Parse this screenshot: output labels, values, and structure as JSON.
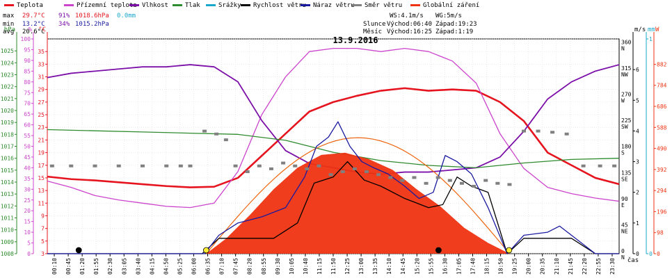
{
  "legend": [
    {
      "label": "Teplota",
      "color": "#e5141e"
    },
    {
      "label": "Přízemní teplota",
      "color": "#cc44cc"
    },
    {
      "label": "Vlhkost",
      "color": "#7b0fa8"
    },
    {
      "label": "Tlak",
      "color": "#2e8b2e"
    },
    {
      "label": "Srážky",
      "color": "#1aa7cc"
    },
    {
      "label": "Rychlost větru",
      "color": "#000000"
    },
    {
      "label": "Náraz větru",
      "color": "#1a1aa0"
    },
    {
      "label": "Směr větru",
      "color": "#808080"
    },
    {
      "label": "Globální záření",
      "color": "#ee3311"
    }
  ],
  "stats": {
    "max": {
      "label": "max",
      "temp": "29.7°C",
      "hum": "91%",
      "press": "1018.6hPa",
      "rain": "0.0mm"
    },
    "min": {
      "label": "min",
      "temp": "13.2°C",
      "hum": "34%",
      "press": "1015.2hPa"
    },
    "avg": {
      "label": "avg",
      "temp": "20.6°C"
    }
  },
  "wind_info": {
    "ws": "WS:4.1m/s",
    "wg": "WG:5m/s"
  },
  "sun": {
    "label": "Slunce",
    "rise": "Východ:06:40",
    "set": "Západ:19:23"
  },
  "moon": {
    "label": "Měsíc",
    "rise": "Východ:16:25",
    "set": "Západ:1:19"
  },
  "chart_data": {
    "type": "line",
    "title": "13.9.2016",
    "xlabel": "čas",
    "x_ticks": [
      "00:10",
      "00:45",
      "01:20",
      "01:55",
      "02:30",
      "03:05",
      "03:40",
      "04:15",
      "04:50",
      "05:25",
      "06:00",
      "06:35",
      "07:10",
      "07:45",
      "08:20",
      "08:55",
      "09:30",
      "10:05",
      "10:40",
      "11:15",
      "11:50",
      "12:25",
      "13:00",
      "13:35",
      "14:10",
      "14:45",
      "15:20",
      "15:55",
      "16:30",
      "17:05",
      "17:40",
      "18:15",
      "18:50",
      "19:25",
      "20:00",
      "20:35",
      "21:10",
      "21:45",
      "22:20",
      "22:55",
      "23:30"
    ],
    "axes": {
      "hpa": {
        "label": "hPa",
        "range": [
          1008,
          1026
        ],
        "ticks": [
          "1008",
          "1009",
          "1010",
          "1011",
          "1012",
          "1013",
          "1014",
          "1015",
          "1016",
          "1017",
          "1018",
          "1019",
          "1020",
          "1021",
          "1022",
          "1023",
          "1024",
          "1025"
        ],
        "color": "#2e8b2e"
      },
      "pct": {
        "label": "%",
        "range": [
          0,
          100
        ],
        "ticks": [
          "0",
          "5",
          "10",
          "15",
          "20",
          "25",
          "30",
          "35",
          "40",
          "45",
          "50",
          "55",
          "60",
          "65",
          "70",
          "75",
          "80",
          "85",
          "90",
          "95",
          "100"
        ],
        "color": "#cc44cc"
      },
      "temp": {
        "label": "°C",
        "range": [
          3,
          37
        ],
        "ticks": [
          "3",
          "5",
          "7",
          "9",
          "11",
          "13",
          "15",
          "17",
          "19",
          "21",
          "23",
          "25",
          "27",
          "29",
          "31",
          "33",
          "35"
        ],
        "color": "#e5141e"
      },
      "ms": {
        "label": "m/s",
        "range": [
          0,
          7
        ],
        "ticks": [
          "0",
          "1",
          "2",
          "3",
          "4",
          "5",
          "6"
        ],
        "color": "#000000"
      },
      "mm": {
        "label": "mm",
        "range": [
          0,
          1
        ],
        "ticks": [
          "0",
          "1"
        ],
        "color": "#1aa7cc"
      },
      "w": {
        "label": "W",
        "range": [
          0,
          1000
        ],
        "ticks": [
          "0",
          "98",
          "196",
          "294",
          "392",
          "490",
          "588",
          "686",
          "784",
          "882"
        ],
        "color": "#ee3311"
      },
      "dir": {
        "ticks": [
          {
            "deg": "0",
            "dir": "N"
          },
          {
            "deg": "45",
            "dir": "NE"
          },
          {
            "deg": "90",
            "dir": "E"
          },
          {
            "deg": "135",
            "dir": "SE"
          },
          {
            "deg": "180",
            "dir": "S"
          },
          {
            "deg": "225",
            "dir": "SW"
          },
          {
            "deg": "270",
            "dir": "W"
          },
          {
            "deg": "315",
            "dir": "NW"
          },
          {
            "deg": "360",
            "dir": "N"
          }
        ],
        "range": [
          0,
          370
        ]
      }
    },
    "series": [
      {
        "name": "Teplota",
        "axis": "temp",
        "color": "#e5141e",
        "x": [
          0,
          1,
          2,
          3,
          4,
          5,
          6,
          7,
          8,
          9,
          10,
          11,
          12,
          13,
          14,
          15,
          16,
          17,
          18,
          19,
          20,
          21,
          22,
          23,
          24
        ],
        "y": [
          15.2,
          14.8,
          14.6,
          14.3,
          14.0,
          13.7,
          13.5,
          13.6,
          15.0,
          18.5,
          22.0,
          25.5,
          27.0,
          28.0,
          28.8,
          29.2,
          28.8,
          29.0,
          28.8,
          27.0,
          24.0,
          19.0,
          17.0,
          15.0,
          14.0
        ]
      },
      {
        "name": "Přízemní teplota",
        "axis": "temp",
        "color": "#cc44cc",
        "x": [
          0,
          1,
          2,
          3,
          4,
          5,
          6,
          7,
          8,
          9,
          10,
          11,
          12,
          13,
          14,
          15,
          16,
          17,
          18,
          19,
          20,
          21,
          22,
          23,
          24
        ],
        "y": [
          14.5,
          13.5,
          12.2,
          11.5,
          11.0,
          10.5,
          10.3,
          11.0,
          16.0,
          25.0,
          31.0,
          35.0,
          35.5,
          35.5,
          35.0,
          35.5,
          35.0,
          33.5,
          30.0,
          22.0,
          16.5,
          13.5,
          12.5,
          11.8,
          11.3
        ]
      },
      {
        "name": "Vlhkost",
        "axis": "pct",
        "color": "#7b0fa8",
        "x": [
          0,
          1,
          2,
          3,
          4,
          5,
          6,
          7,
          8,
          9,
          10,
          11,
          12,
          13,
          14,
          15,
          16,
          17,
          18,
          19,
          20,
          21,
          22,
          23,
          24
        ],
        "y": [
          82,
          84,
          85,
          86,
          87,
          87,
          88,
          87,
          80,
          62,
          48,
          42,
          40,
          38,
          37,
          38,
          38,
          39,
          40,
          45,
          57,
          72,
          80,
          85,
          88
        ]
      },
      {
        "name": "Tlak",
        "axis": "hpa",
        "color": "#2e8b2e",
        "x": [
          0,
          2,
          4,
          6,
          8,
          10,
          12,
          14,
          16,
          18,
          20,
          22,
          24
        ],
        "y": [
          1018.4,
          1018.3,
          1018.2,
          1018.1,
          1018.0,
          1017.5,
          1016.5,
          1015.8,
          1015.4,
          1015.2,
          1015.6,
          1015.9,
          1016.0
        ]
      },
      {
        "name": "Globální záření",
        "axis": "w",
        "color": "#ee3311",
        "type": "area",
        "x": [
          6.67,
          7.5,
          8.5,
          9.5,
          10.5,
          11.5,
          12.5,
          13.5,
          14.5,
          15.5,
          16.5,
          17.5,
          18.5,
          19.4
        ],
        "y": [
          0,
          70,
          180,
          300,
          400,
          460,
          470,
          440,
          390,
          300,
          220,
          120,
          50,
          0
        ]
      },
      {
        "name": "Rychlost větru",
        "axis": "ms",
        "color": "#000000",
        "x": [
          0,
          6.5,
          7.2,
          7.6,
          8.5,
          9.5,
          10.5,
          11.2,
          12.0,
          12.6,
          13.3,
          14.0,
          15.0,
          16.0,
          16.6,
          17.2,
          17.8,
          18.5,
          19.3,
          20.0,
          21.0,
          22.0,
          23.0,
          24
        ],
        "y": [
          0,
          0,
          0.5,
          0.5,
          0.5,
          0.5,
          1.0,
          2.3,
          2.5,
          3.0,
          2.4,
          2.2,
          1.8,
          1.5,
          1.6,
          2.5,
          2.2,
          2.0,
          0,
          0.5,
          0.5,
          0.5,
          0,
          0
        ]
      },
      {
        "name": "Náraz větru",
        "axis": "ms",
        "color": "#1a1aa0",
        "x": [
          0,
          6.6,
          7.2,
          8.0,
          9.0,
          10.0,
          10.8,
          11.3,
          11.8,
          12.2,
          12.7,
          13.2,
          13.7,
          14.3,
          15.0,
          15.6,
          16.2,
          16.7,
          17.2,
          17.8,
          18.5,
          19.3,
          20.0,
          21.0,
          21.5,
          22.0,
          23.0,
          24
        ],
        "y": [
          0,
          0,
          0.6,
          1.0,
          1.2,
          1.5,
          2.5,
          3.5,
          3.8,
          4.3,
          3.5,
          3.0,
          2.8,
          2.6,
          2.2,
          1.8,
          2.0,
          3.2,
          3.0,
          2.6,
          1.5,
          0,
          0.6,
          0.7,
          0.9,
          0.6,
          0,
          0
        ]
      },
      {
        "name": "Směr větru",
        "axis": "dir",
        "color": "#808080",
        "type": "scatter",
        "x": [
          0.2,
          1.0,
          2.0,
          3.0,
          4.0,
          5.0,
          5.6,
          6.0,
          6.6,
          7.1,
          7.5,
          7.9,
          8.4,
          8.9,
          9.4,
          9.9,
          10.4,
          10.9,
          11.4,
          11.9,
          12.4,
          12.9,
          13.4,
          13.9,
          14.4,
          14.9,
          15.4,
          15.9,
          16.4,
          16.9,
          17.4,
          17.9,
          18.4,
          18.9,
          19.4,
          20.0,
          20.6,
          21.2,
          21.8,
          22.5,
          23.2,
          23.8
        ],
        "y": [
          150,
          150,
          150,
          150,
          150,
          150,
          150,
          150,
          210,
          205,
          195,
          150,
          140,
          150,
          145,
          155,
          150,
          145,
          150,
          135,
          140,
          145,
          140,
          135,
          130,
          125,
          130,
          120,
          130,
          125,
          120,
          115,
          125,
          120,
          118,
          210,
          210,
          208,
          205,
          150,
          150,
          150
        ]
      }
    ],
    "markers": [
      {
        "name": "moon-set",
        "x": 1.32,
        "color": "#000000"
      },
      {
        "name": "sun-rise",
        "x": 6.67,
        "color": "#ffee33"
      },
      {
        "name": "moon-rise",
        "x": 16.42,
        "color": "#000000"
      },
      {
        "name": "sun-set",
        "x": 19.38,
        "color": "#ffee33"
      }
    ]
  }
}
